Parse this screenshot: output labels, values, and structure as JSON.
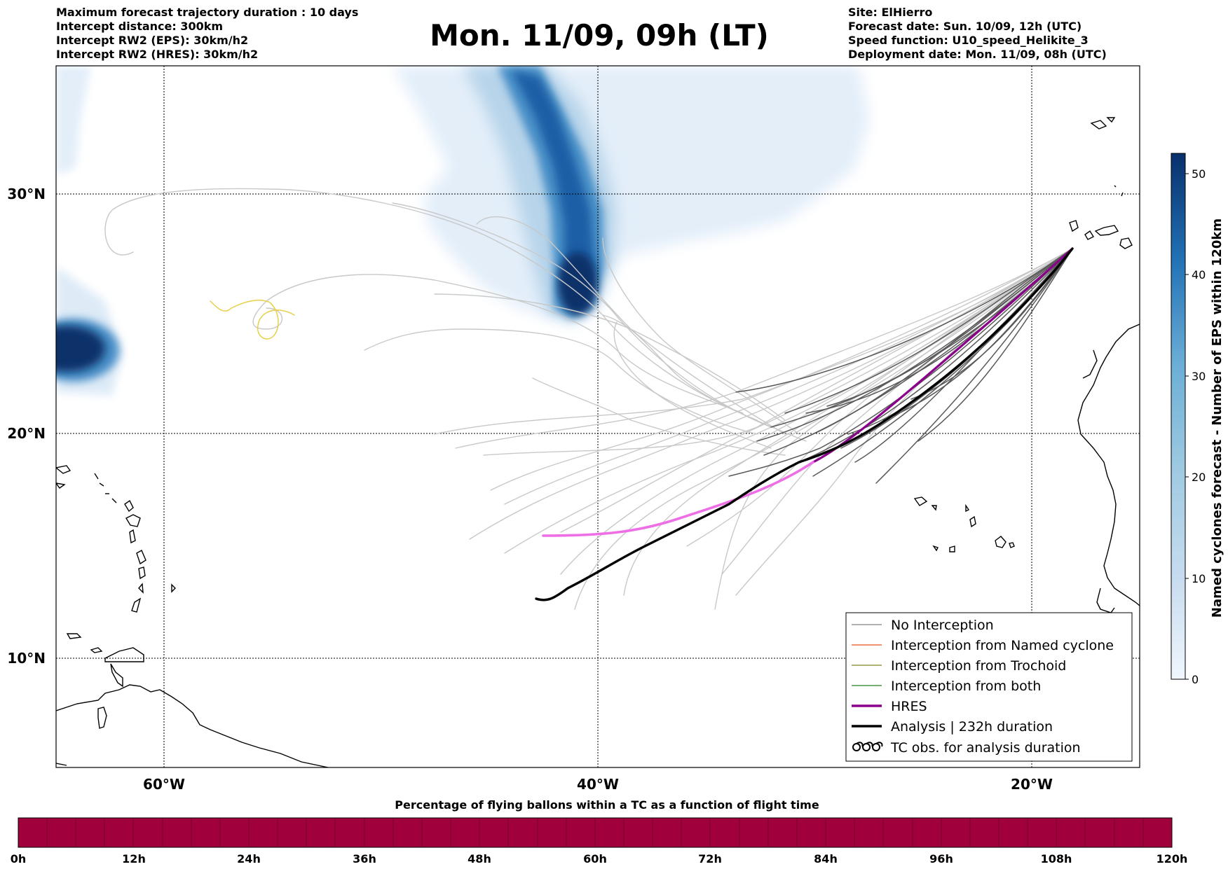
{
  "header_left": [
    "Maximum forecast trajectory duration : 10 days",
    "Intercept distance: 300km",
    "Intercept RW2 (EPS):  30km/h2",
    "Intercept RW2 (HRES): 30km/h2"
  ],
  "title": "Mon. 11/09, 09h (LT)",
  "header_right": [
    "Site: ElHierro",
    "Forecast date: Sun. 10/09, 12h (UTC)",
    "Speed function: U10_speed_Helikite_3",
    "Deployment date: Mon. 11/09, 08h (UTC)"
  ],
  "map": {
    "lat_labels": [
      {
        "lat": 30,
        "label": "30°N"
      },
      {
        "lat": 20,
        "label": "20°N"
      },
      {
        "lat": 10,
        "label": "10°N"
      }
    ],
    "lon_labels": [
      {
        "lon": -60,
        "label": "60°W"
      },
      {
        "lon": -40,
        "label": "40°W"
      },
      {
        "lon": -20,
        "label": "20°W"
      }
    ],
    "extent": {
      "lon_min": -65,
      "lon_max": -15,
      "lat_min": 5.3,
      "lat_max": 34.6
    }
  },
  "legend": {
    "items": [
      {
        "label": "No Interception",
        "color": "#808080",
        "kind": "line-thin"
      },
      {
        "label": "Interception from Named cyclone",
        "color": "#e8541a",
        "kind": "line-thin"
      },
      {
        "label": "Interception from Trochoid",
        "color": "#808020",
        "kind": "line-thin"
      },
      {
        "label": "Interception from both",
        "color": "#208020",
        "kind": "line-thin"
      },
      {
        "label": "HRES",
        "color": "#8b008b",
        "kind": "line-thick"
      },
      {
        "label": "Analysis | 232h duration",
        "color": "#000000",
        "kind": "line-thick"
      },
      {
        "label": "TC obs. for analysis duration",
        "color": "#000000",
        "kind": "cyclone-symbols"
      }
    ]
  },
  "colorbar": {
    "label": "Named cyclones forecast - Number of EPS within 120km",
    "ticks": [
      "0",
      "10",
      "20",
      "30",
      "40",
      "50"
    ],
    "min": 0,
    "max": 52,
    "color_low": "#e3eef9",
    "color_high": "#08306b"
  },
  "bottom_bar": {
    "title": "Percentage of flying ballons within a TC as a function of flight time",
    "ticks": [
      "0h",
      "12h",
      "24h",
      "36h",
      "48h",
      "60h",
      "72h",
      "84h",
      "96h",
      "108h",
      "120h"
    ],
    "fill_color": "#a0003c"
  }
}
